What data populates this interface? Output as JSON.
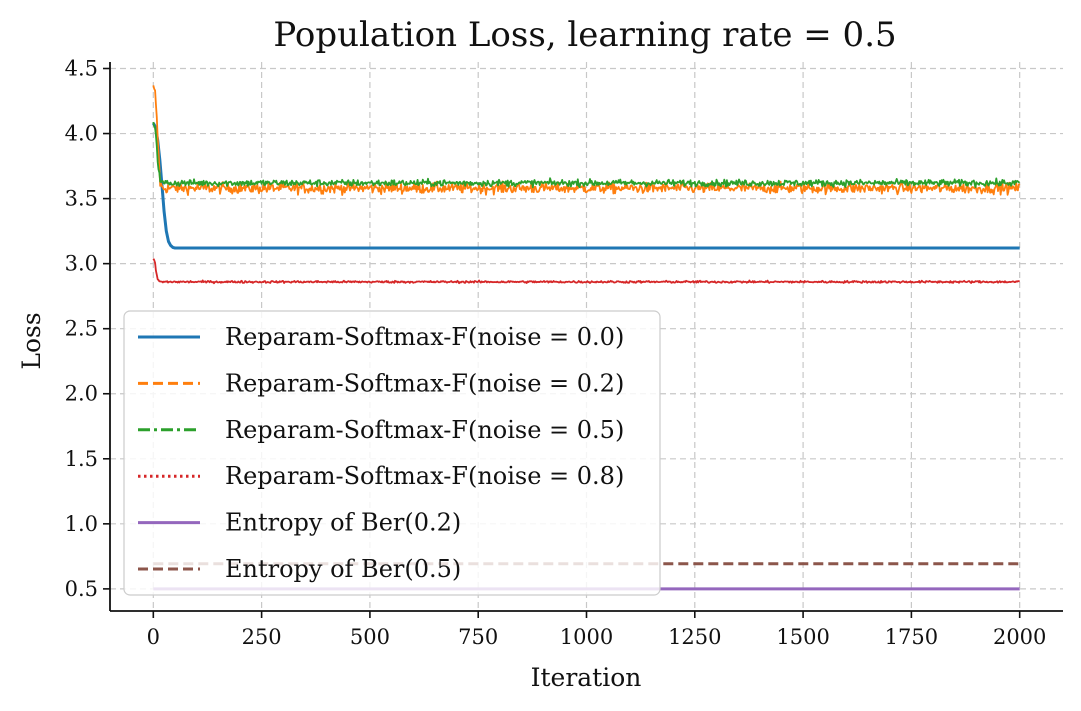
{
  "chart_data": {
    "type": "line",
    "title": "Population Loss, learning rate = 0.5",
    "xlabel": "Iteration",
    "ylabel": "Loss",
    "xlim": [
      -100,
      2100
    ],
    "ylim": [
      0.33,
      4.55
    ],
    "xticks": [
      0,
      250,
      500,
      750,
      1000,
      1250,
      1500,
      1750,
      2000
    ],
    "yticks": [
      0.5,
      1.0,
      1.5,
      2.0,
      2.5,
      3.0,
      3.5,
      4.0,
      4.5
    ],
    "xtick_labels": [
      "0",
      "250",
      "500",
      "750",
      "1000",
      "1250",
      "1500",
      "1750",
      "2000"
    ],
    "ytick_labels": [
      "0.5",
      "1.0",
      "1.5",
      "2.0",
      "2.5",
      "3.0",
      "3.5",
      "4.0",
      "4.5"
    ],
    "grid": true,
    "legend_position": "center-left",
    "series": [
      {
        "name": "Reparam-Softmax-F(noise = 0.0)",
        "color": "#1f77b4",
        "style": "solid",
        "x": [
          0,
          5,
          10,
          15,
          20,
          25,
          30,
          35,
          40,
          45,
          50,
          60,
          80,
          100,
          2000
        ],
        "values": [
          4.08,
          4.05,
          3.95,
          3.8,
          3.6,
          3.4,
          3.25,
          3.17,
          3.14,
          3.125,
          3.12,
          3.12,
          3.12,
          3.12,
          3.12
        ]
      },
      {
        "name": "Reparam-Softmax-F(noise = 0.2)",
        "color": "#ff7f0e",
        "style": "dashed",
        "x": [
          0,
          5,
          8,
          12,
          16,
          20,
          2000
        ],
        "values": [
          4.35,
          4.3,
          4.1,
          3.85,
          3.62,
          3.58,
          3.58
        ],
        "noise": 0.04
      },
      {
        "name": "Reparam-Softmax-F(noise = 0.5)",
        "color": "#2ca02c",
        "style": "dashdot",
        "x": [
          0,
          5,
          10,
          15,
          20,
          2000
        ],
        "values": [
          4.08,
          4.05,
          3.8,
          3.65,
          3.62,
          3.62
        ],
        "noise": 0.025
      },
      {
        "name": "Reparam-Softmax-F(noise = 0.8)",
        "color": "#d62728",
        "style": "dotted",
        "x": [
          0,
          3,
          6,
          10,
          15,
          2000
        ],
        "values": [
          3.04,
          3.02,
          2.95,
          2.88,
          2.86,
          2.86
        ],
        "noise": 0.008
      },
      {
        "name": "Entropy of Ber(0.2)",
        "color": "#9467bd",
        "style": "solid",
        "x": [
          0,
          2000
        ],
        "values": [
          0.5,
          0.5
        ]
      },
      {
        "name": "Entropy of Ber(0.5)",
        "color": "#8c564b",
        "style": "dashed",
        "x": [
          0,
          2000
        ],
        "values": [
          0.693,
          0.693
        ]
      }
    ]
  }
}
